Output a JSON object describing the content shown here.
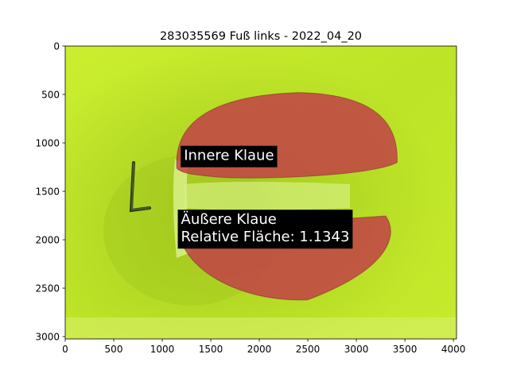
{
  "chart_data": {
    "type": "image",
    "title": "283035569 Fuß links - 2022_04_20",
    "xlabel": "",
    "ylabel": "",
    "xlim": [
      0,
      4032
    ],
    "ylim": [
      3024,
      0
    ],
    "xticks": [
      0,
      500,
      1000,
      1500,
      2000,
      2500,
      3000,
      3500,
      4000
    ],
    "yticks": [
      0,
      500,
      1000,
      1500,
      2000,
      2500,
      3000
    ],
    "grid": false,
    "colors": {
      "background": "#c4ea2a",
      "claw_overlay": "#c23a48",
      "label_box": "#000000",
      "label_text": "#ffffff"
    },
    "annotations": [
      {
        "id": "inner",
        "lines": [
          "Innere Klaue"
        ],
        "x": 1190,
        "y": 1030
      },
      {
        "id": "outer",
        "lines": [
          "Äußere Klaue",
          "Relative Fläche: 1.1343"
        ],
        "x": 1160,
        "y": 1690
      }
    ],
    "regions": [
      {
        "label": "Innere Klaue",
        "center": [
          2350,
          960
        ],
        "extent": [
          1150,
          3420,
          480,
          1360
        ]
      },
      {
        "label": "Äußere Klaue",
        "center": [
          2300,
          2120
        ],
        "extent": [
          1150,
          3400,
          1770,
          2620
        ]
      }
    ]
  }
}
